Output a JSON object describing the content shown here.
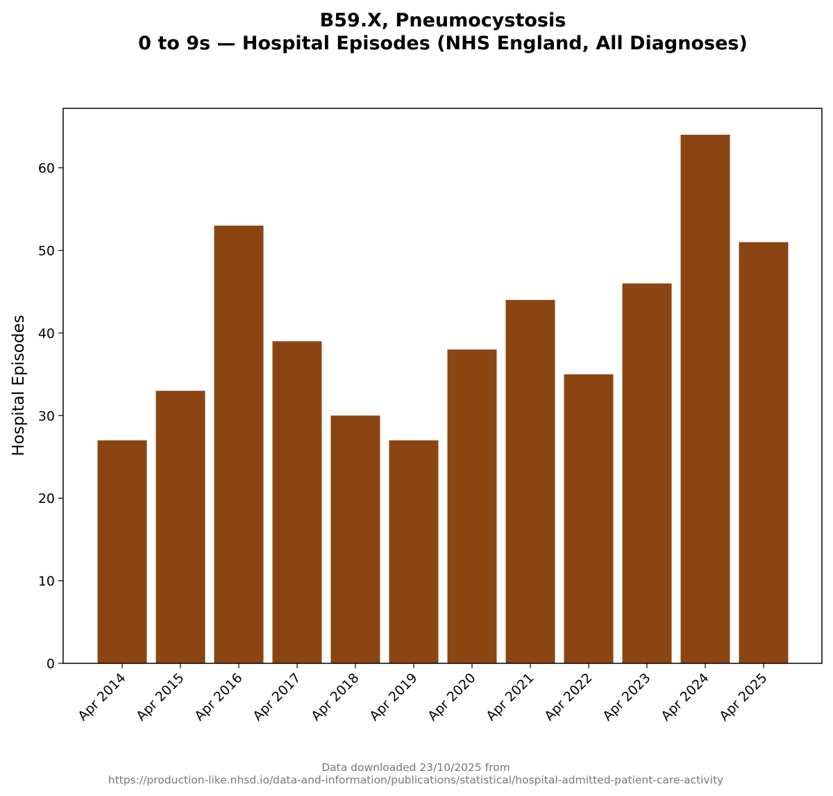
{
  "chart_data": {
    "type": "bar",
    "title_line1": "B59.X, Pneumocystosis",
    "title_line2": "0 to 9s — Hospital Episodes (NHS England, All Diagnoses)",
    "xlabel": "",
    "ylabel": "Hospital Episodes",
    "categories": [
      "Apr 2014",
      "Apr 2015",
      "Apr 2016",
      "Apr 2017",
      "Apr 2018",
      "Apr 2019",
      "Apr 2020",
      "Apr 2021",
      "Apr 2022",
      "Apr 2023",
      "Apr 2024",
      "Apr 2025"
    ],
    "values": [
      27,
      33,
      53,
      39,
      30,
      27,
      38,
      44,
      35,
      46,
      64,
      51
    ],
    "ylim": [
      0,
      67.2
    ],
    "yticks": [
      0,
      10,
      20,
      30,
      40,
      50,
      60
    ],
    "bar_color": "#8B4513",
    "grid": false
  },
  "footer": {
    "line1": "Data downloaded 23/10/2025 from",
    "line2": "https://production-like.nhsd.io/data-and-information/publications/statistical/hospital-admitted-patient-care-activity"
  }
}
